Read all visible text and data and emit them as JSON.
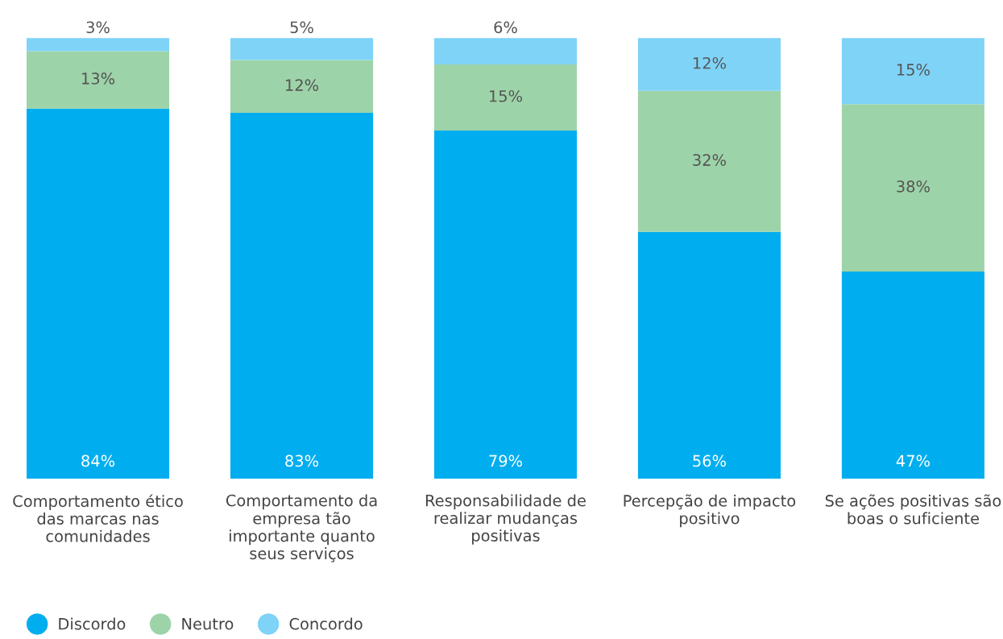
{
  "chart_data": {
    "type": "bar",
    "stacked": true,
    "data_labels": true,
    "legend": "bottom left",
    "grid": false,
    "categories": [
      "Comportamento ético\ndas marcas nas\ncomunidades",
      "Comportamento da\nempresa tão\nimportante quanto\nseus serviços",
      "Responsabilidade de\nrealizar mudanças\npositivas",
      "Percepção de impacto\npositivo",
      "Se ações positivas são\nboas o suficiente"
    ],
    "series": [
      {
        "name": "Discordo",
        "color": "#00aeef",
        "values": [
          84,
          83,
          79,
          56,
          47
        ],
        "value_labels": [
          "84%",
          "83%",
          "79%",
          "56%",
          "47%"
        ]
      },
      {
        "name": "Neutro",
        "color": "#9dd3a8",
        "values": [
          13,
          12,
          15,
          32,
          38
        ],
        "value_labels": [
          "13%",
          "12%",
          "15%",
          "32%",
          "38%"
        ]
      },
      {
        "name": "Concordo",
        "color": "#7fd3f7",
        "values": [
          3,
          5,
          6,
          12,
          15
        ],
        "value_labels": [
          "3%",
          "5%",
          "6%",
          "12%",
          "15%"
        ]
      }
    ]
  }
}
